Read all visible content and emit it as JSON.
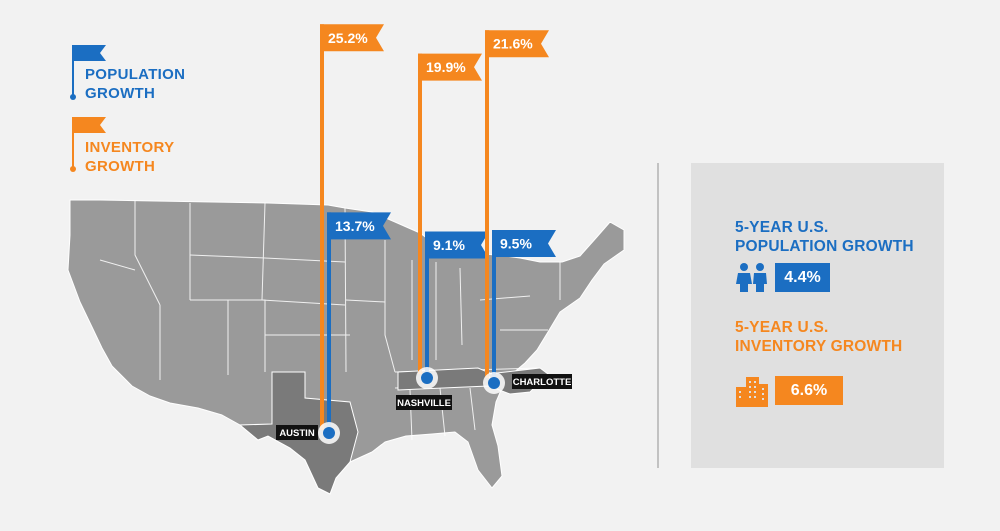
{
  "colors": {
    "population": "#1b6ec2",
    "inventory": "#f5871f",
    "map": "#9a9a9a",
    "map_dark": "#7a7a7a",
    "map_border": "#ffffff",
    "label_bg": "#111111"
  },
  "legend": {
    "population_label_line1": "POPULATION",
    "population_label_line2": "GROWTH",
    "inventory_label_line1": "INVENTORY",
    "inventory_label_line2": "GROWTH"
  },
  "chart_data": {
    "type": "bar",
    "categories": [
      "AUSTIN",
      "NASHVILLE",
      "CHARLOTTE"
    ],
    "series": [
      {
        "name": "POPULATION GROWTH",
        "values": [
          13.7,
          9.1,
          9.5
        ],
        "labels": [
          "13.7%",
          "9.1%",
          "9.5%"
        ]
      },
      {
        "name": "INVENTORY GROWTH",
        "values": [
          25.2,
          19.9,
          21.6
        ],
        "labels": [
          "25.2%",
          "19.9%",
          "21.6%"
        ]
      }
    ]
  },
  "side_panel": {
    "population_title_line1": "5-YEAR U.S.",
    "population_title_line2": "POPULATION GROWTH",
    "population_value": "4.4%",
    "population_icon": "people-icon",
    "inventory_title_line1": "5-YEAR U.S.",
    "inventory_title_line2": "INVENTORY GROWTH",
    "inventory_value": "6.6%",
    "inventory_icon": "buildings-icon"
  }
}
